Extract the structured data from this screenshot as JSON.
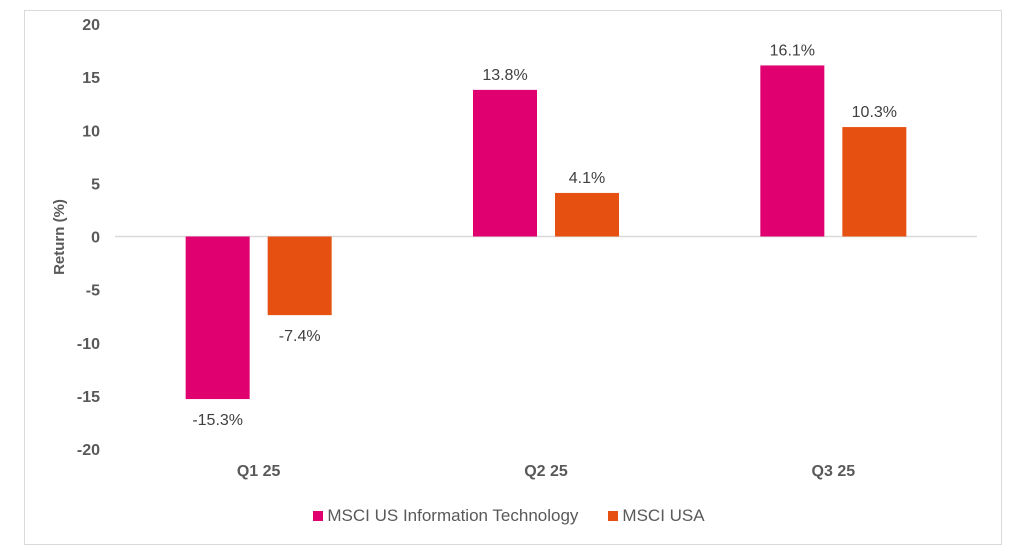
{
  "chart_data": {
    "type": "bar",
    "title": "",
    "xlabel": "",
    "ylabel": "Return (%)",
    "ylim": [
      -20,
      20
    ],
    "yticks": [
      20,
      15,
      10,
      5,
      0,
      -5,
      -10,
      -15,
      -20
    ],
    "grid": false,
    "categories": [
      "Q1 25",
      "Q2 25",
      "Q3 25"
    ],
    "series": [
      {
        "name": "MSCI US Information Technology",
        "color": "#e0006f",
        "values": [
          -15.3,
          13.8,
          16.1
        ],
        "labels": [
          "-15.3%",
          "13.8%",
          "16.1%"
        ]
      },
      {
        "name": "MSCI USA",
        "color": "#e65112",
        "values": [
          -7.4,
          4.1,
          10.3
        ],
        "labels": [
          "-7.4%",
          "4.1%",
          "10.3%"
        ]
      }
    ],
    "legend_position": "bottom"
  }
}
